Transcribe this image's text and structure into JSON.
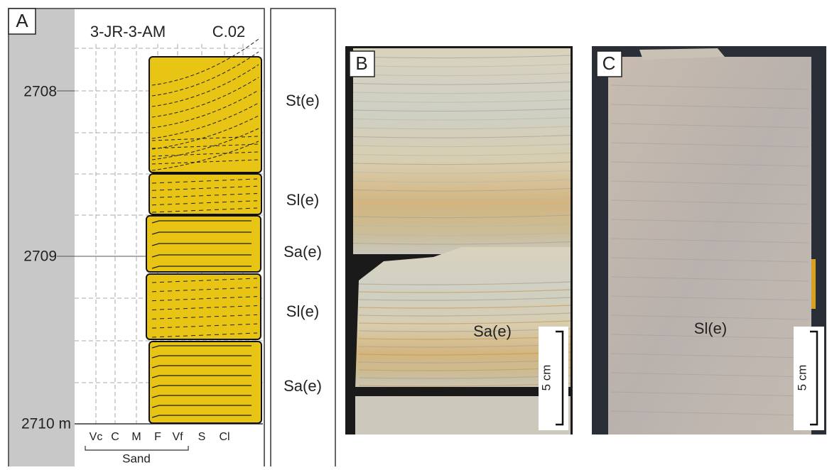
{
  "panel_a": {
    "label": "A",
    "well": "3-JR-3-AM",
    "core": "C.02",
    "depths": [
      "2708",
      "2709",
      "2710 m"
    ],
    "grain_sizes": [
      "Vc",
      "C",
      "M",
      "F",
      "Vf",
      "S",
      "Cl"
    ],
    "grain_group": "Sand",
    "facies": [
      "St(e)",
      "Sl(e)",
      "Sa(e)",
      "Sl(e)",
      "Sa(e)"
    ]
  },
  "panel_b": {
    "label": "B",
    "facies": "Sa(e)",
    "scale": "5 cm"
  },
  "panel_c": {
    "label": "C",
    "facies": "Sl(e)",
    "scale": "5 cm"
  }
}
